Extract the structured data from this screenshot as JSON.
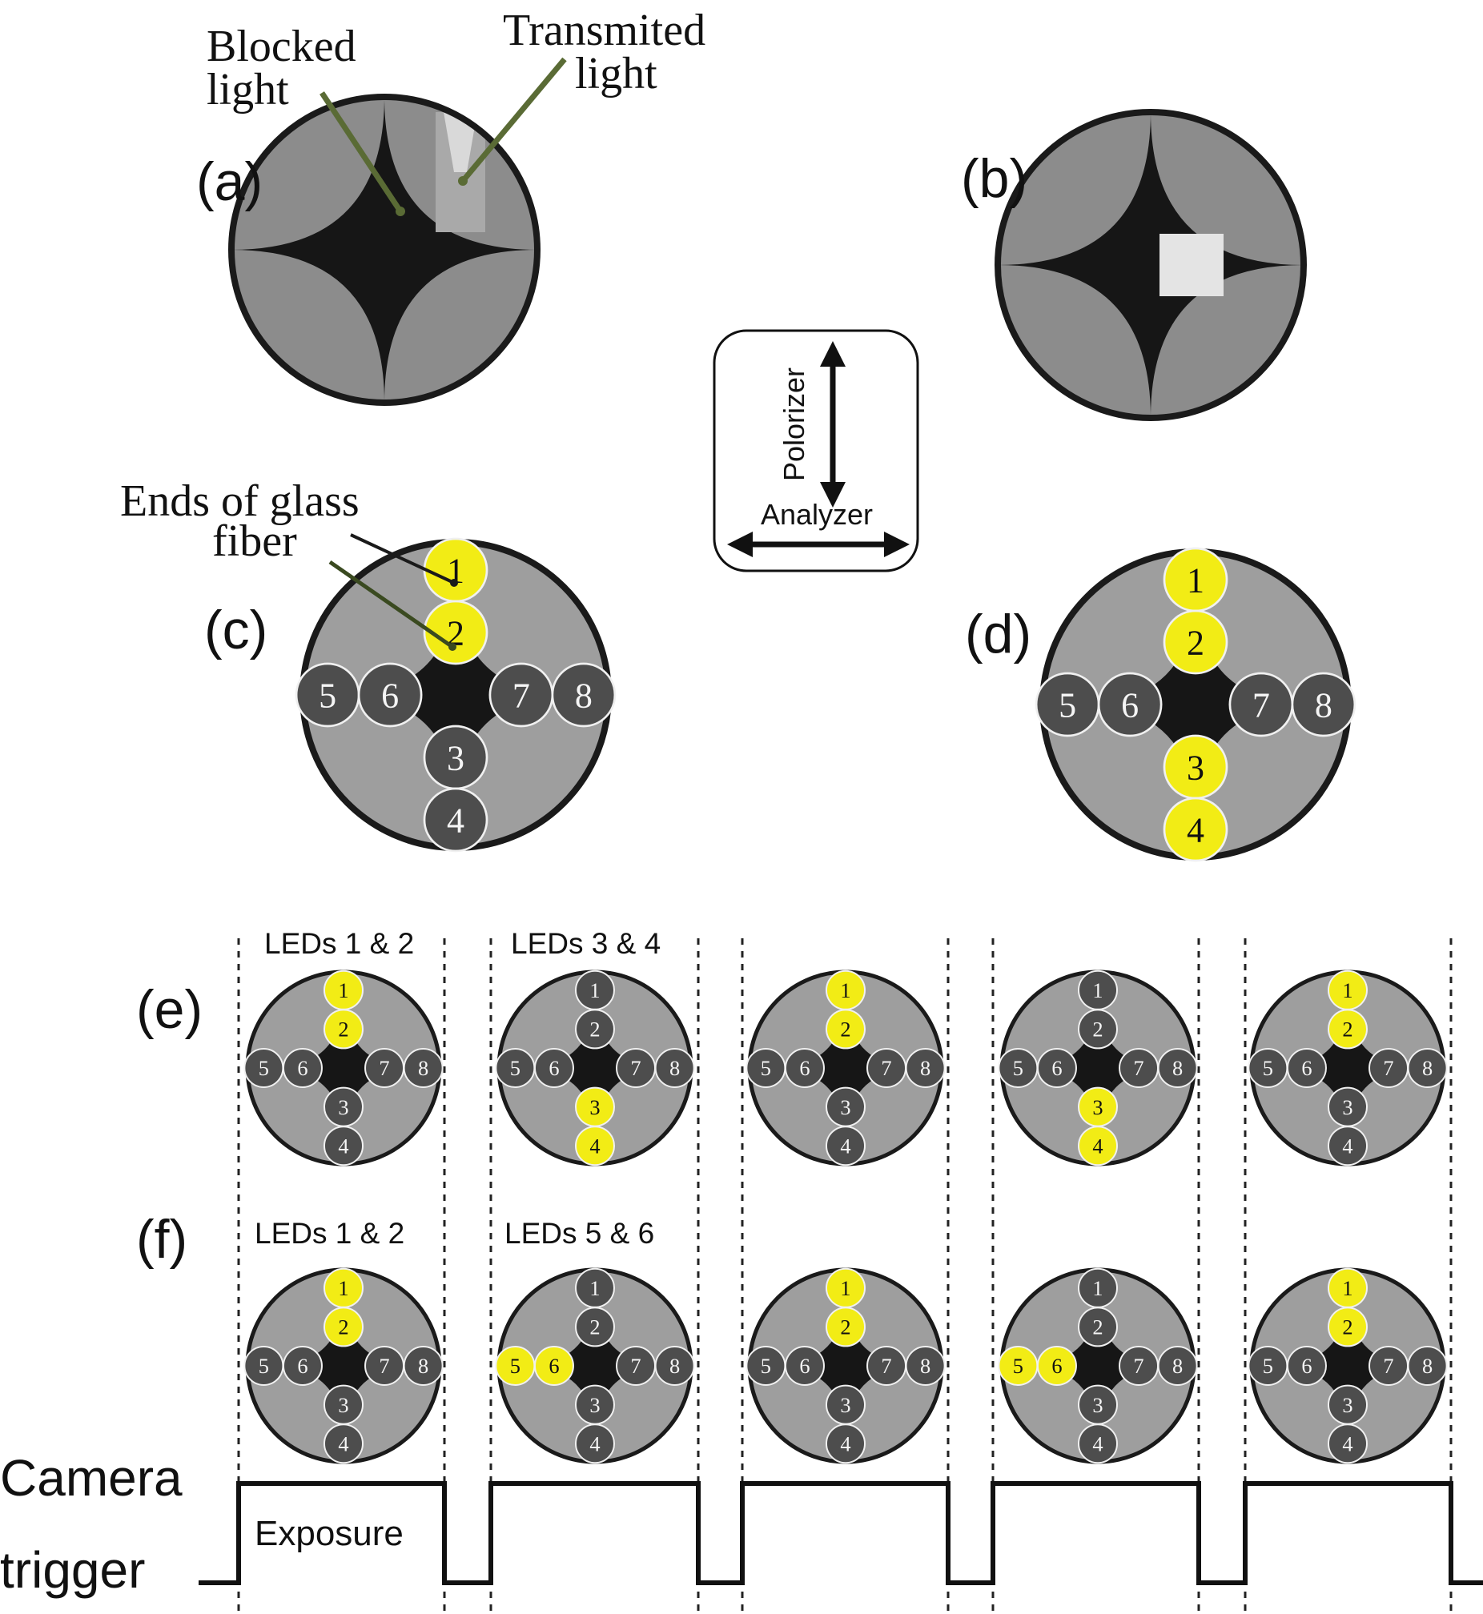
{
  "panels": {
    "a": {
      "label": "(a)"
    },
    "b": {
      "label": "(b)"
    },
    "c": {
      "label": "(c)"
    },
    "d": {
      "label": "(d)"
    },
    "e": {
      "label": "(e)"
    },
    "f": {
      "label": "(f)"
    }
  },
  "annotations": {
    "blocked_light": [
      "Blocked",
      "light"
    ],
    "transmitted_light": [
      "Transmited",
      "light"
    ],
    "glass_fiber_ends": [
      "Ends of glass",
      "fiber"
    ]
  },
  "polarizer_box": {
    "polarizer_label": "Polorizer",
    "analyzer_label": "Analyzer"
  },
  "fiber_numbers": [
    "1",
    "2",
    "3",
    "4",
    "5",
    "6",
    "7",
    "8"
  ],
  "panel_c_lit": [
    "1",
    "2"
  ],
  "panel_d_lit": [
    "1",
    "2",
    "3",
    "4"
  ],
  "row_e": {
    "frame_labels": [
      "LEDs  1 & 2",
      "LEDs 3 & 4",
      "",
      "",
      ""
    ],
    "frames_lit": [
      [
        "1",
        "2"
      ],
      [
        "3",
        "4"
      ],
      [
        "1",
        "2"
      ],
      [
        "3",
        "4"
      ],
      [
        "1",
        "2"
      ]
    ]
  },
  "row_f": {
    "frame_labels": [
      "LEDs  1 & 2",
      "LEDs 5 & 6",
      "",
      "",
      ""
    ],
    "frames_lit": [
      [
        "1",
        "2"
      ],
      [
        "5",
        "6"
      ],
      [
        "1",
        "2"
      ],
      [
        "5",
        "6"
      ],
      [
        "1",
        "2"
      ]
    ]
  },
  "camera_trigger": {
    "label_line1": "Camera",
    "label_line2": "trigger",
    "exposure_label": "Exposure",
    "pulse_count": 5
  },
  "colors": {
    "lit_fiber": "#f2ec15",
    "unlit_fiber": "#4d4d4d",
    "outer_disc": "#8c8c8c",
    "dark_field": "#161616",
    "leader_line": "#5a6b35"
  }
}
